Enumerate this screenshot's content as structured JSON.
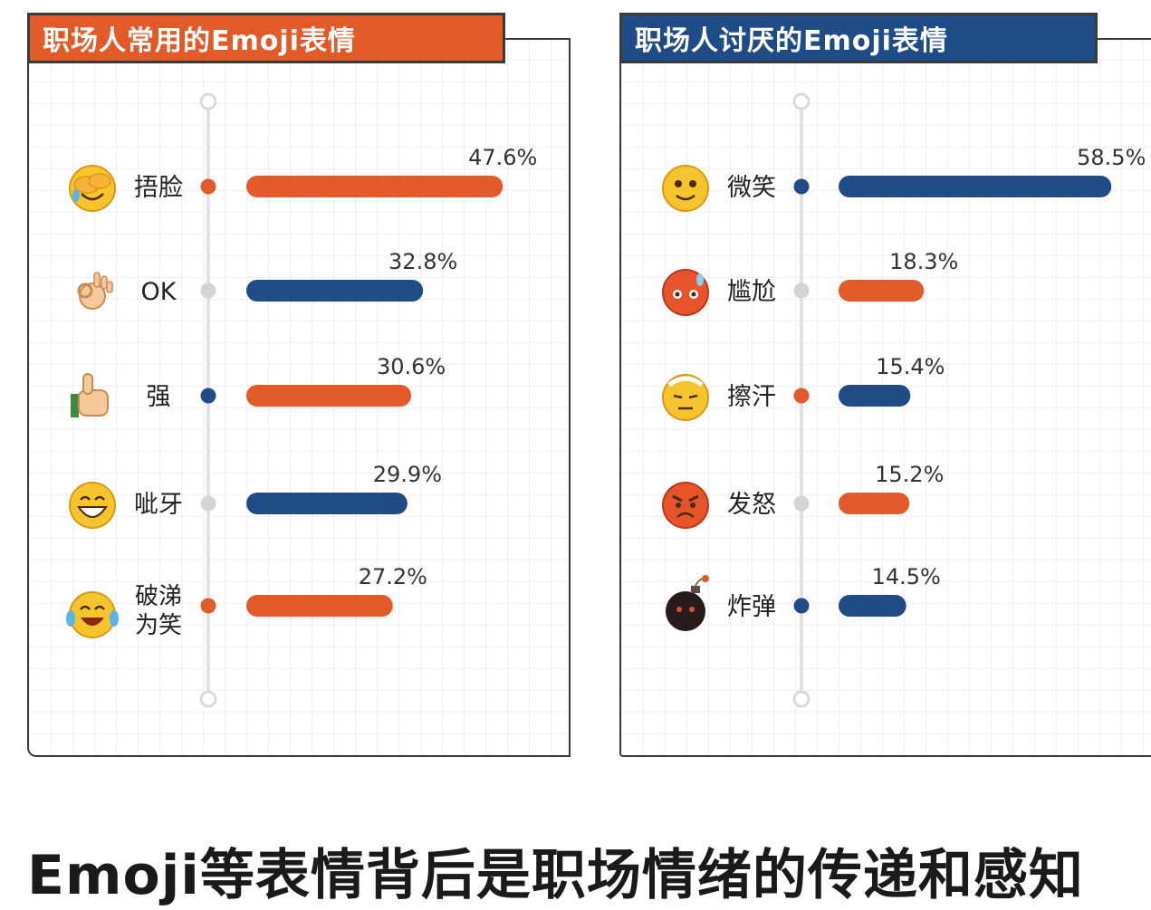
{
  "caption": "Emoji等表情背后是职场情绪的传递和感知",
  "colors": {
    "orange": "#e15a27",
    "blue": "#1f4b87"
  },
  "chart_data": [
    {
      "type": "bar",
      "orientation": "horizontal",
      "title": "职场人常用的Emoji表情",
      "categories": [
        "捂脸",
        "OK",
        "强",
        "呲牙",
        "破涕为笑"
      ],
      "values": [
        47.6,
        32.8,
        30.6,
        29.9,
        27.2
      ],
      "value_labels": [
        "47.6%",
        "32.8%",
        "30.6%",
        "29.9%",
        "27.2%"
      ],
      "bar_colors": [
        "#e15a27",
        "#1f4b87",
        "#e15a27",
        "#1f4b87",
        "#e15a27"
      ],
      "icons": [
        "face-palm-icon",
        "ok-hand-icon",
        "thumbs-up-icon",
        "grin-icon",
        "tears-of-joy-icon"
      ],
      "unit": "%"
    },
    {
      "type": "bar",
      "orientation": "horizontal",
      "title": "职场人讨厌的Emoji表情",
      "categories": [
        "微笑",
        "尴尬",
        "擦汗",
        "发怒",
        "炸弹"
      ],
      "values": [
        58.5,
        18.3,
        15.4,
        15.2,
        14.5
      ],
      "value_labels": [
        "58.5%",
        "18.3%",
        "15.4%",
        "15.2%",
        "14.5%"
      ],
      "bar_colors": [
        "#1f4b87",
        "#e15a27",
        "#1f4b87",
        "#e15a27",
        "#1f4b87"
      ],
      "icons": [
        "smile-icon",
        "awkward-icon",
        "wipe-sweat-icon",
        "angry-icon",
        "bomb-icon"
      ],
      "unit": "%"
    }
  ]
}
